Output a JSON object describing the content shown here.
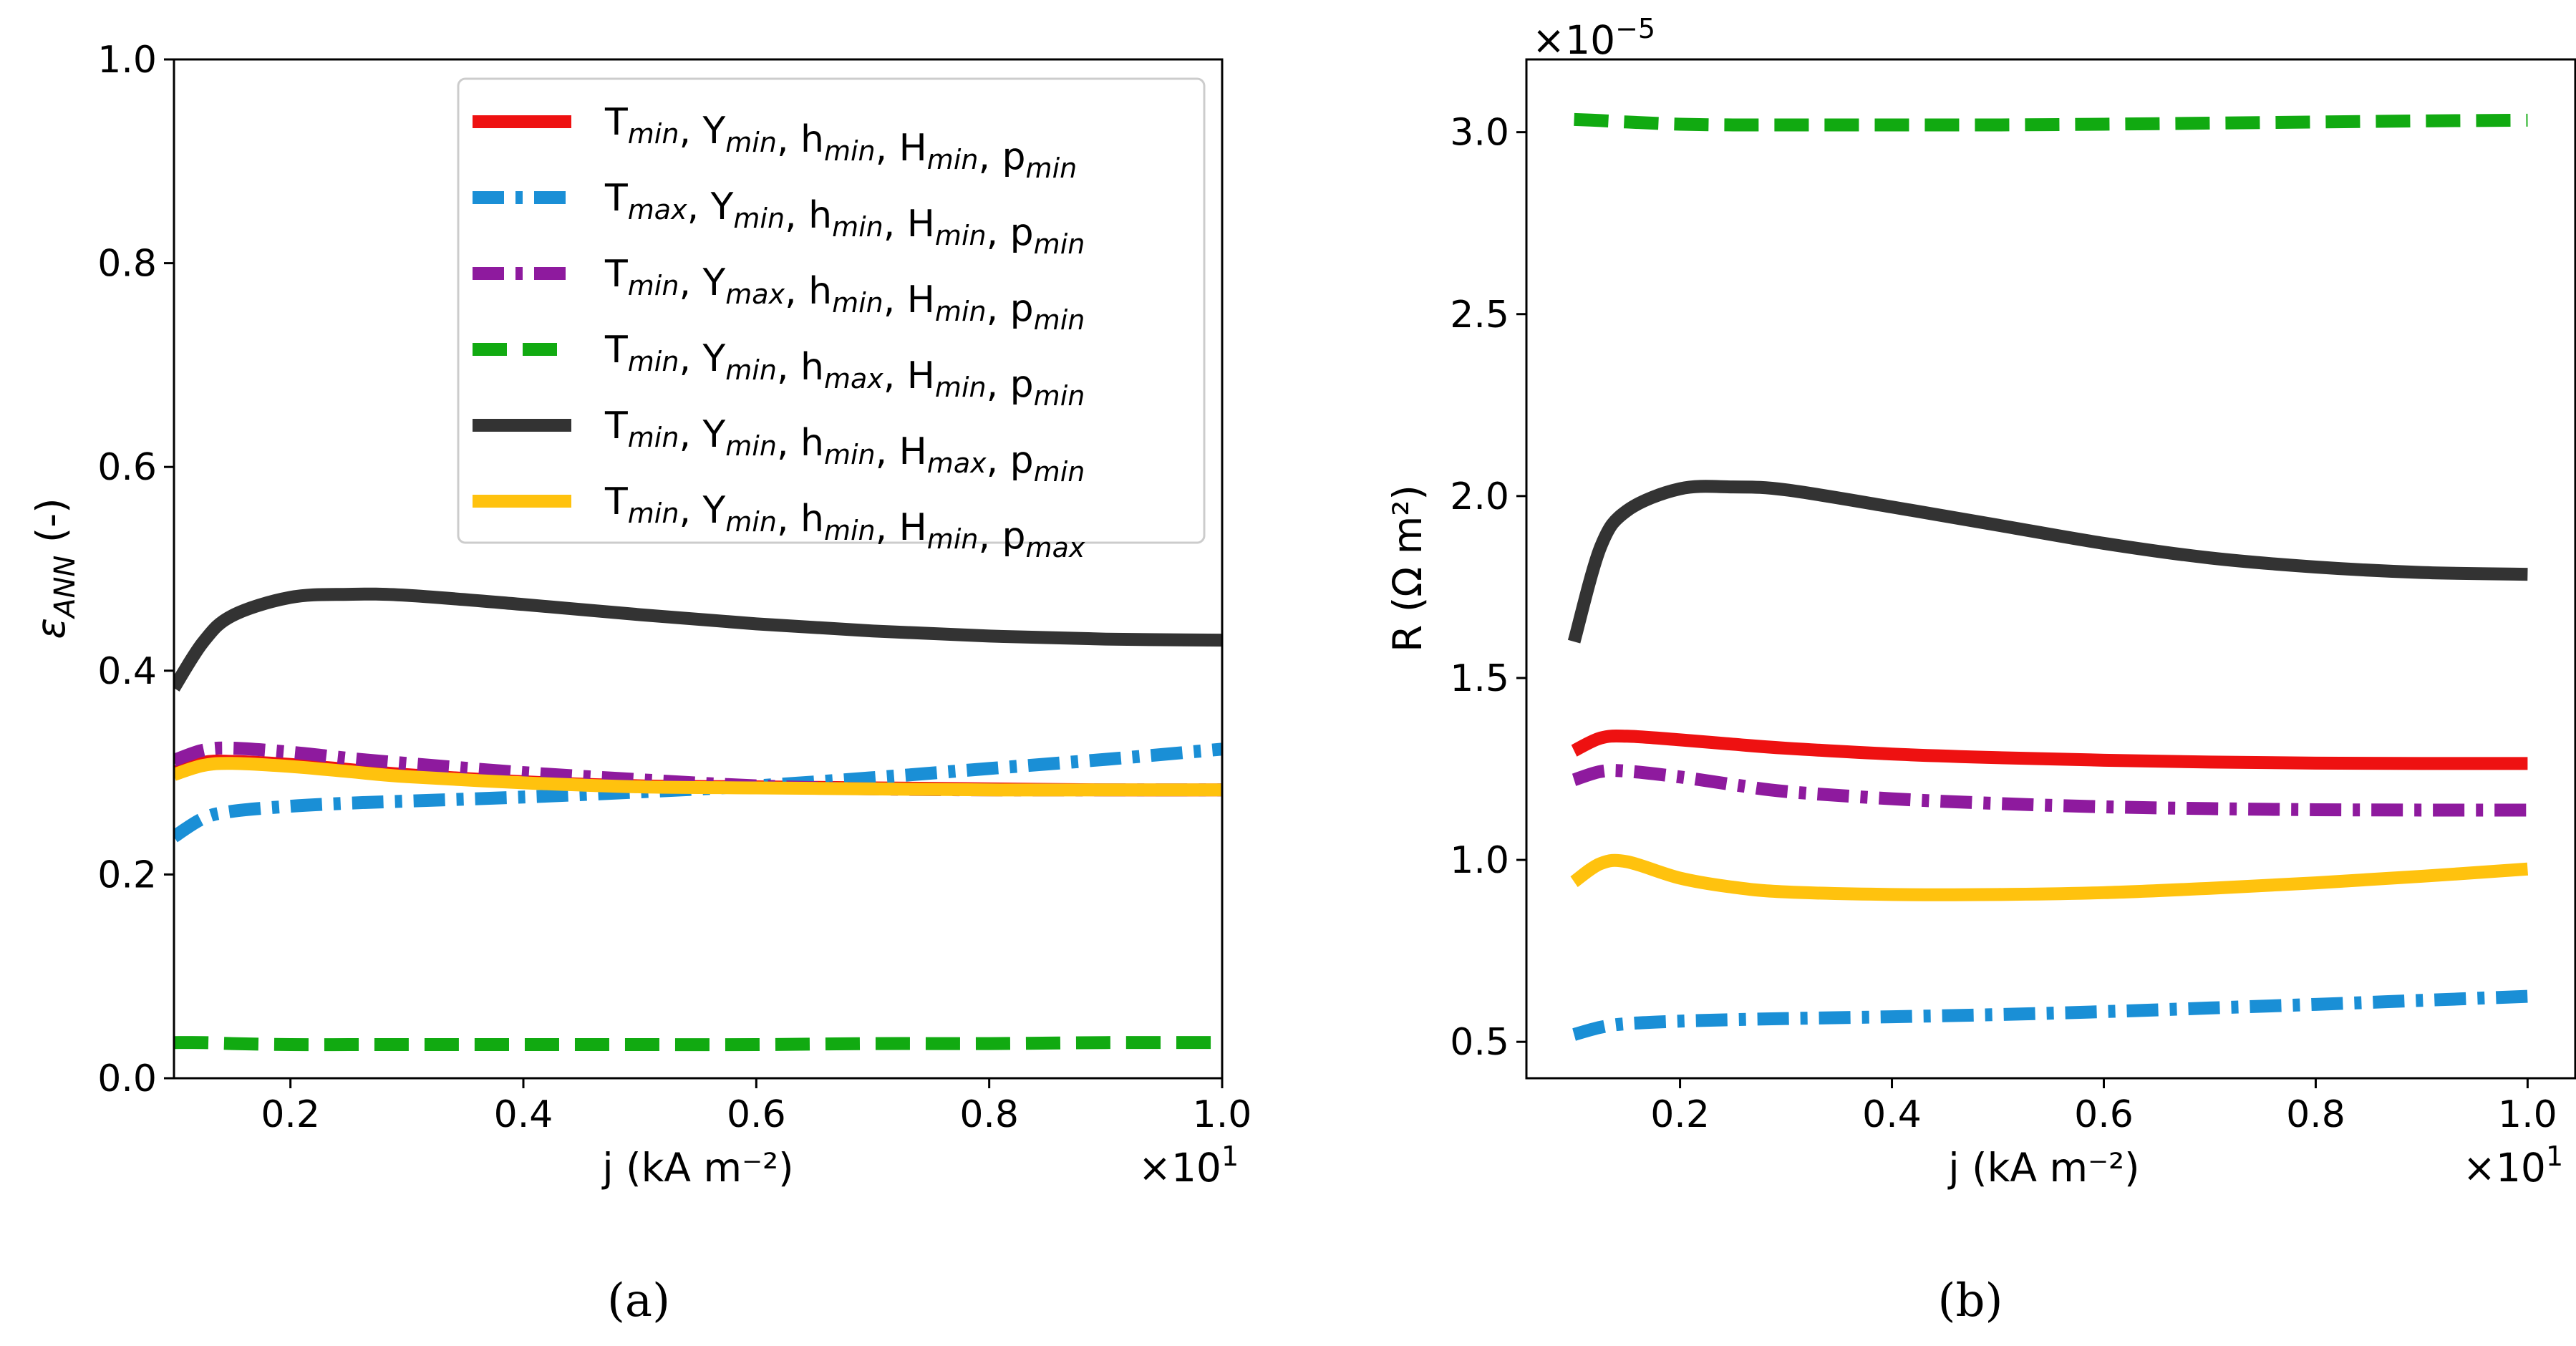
{
  "panel_labels": [
    "(a)",
    "(b)"
  ],
  "x_multiplier": "×10",
  "x_multiplier_exp": "1",
  "y_multiplier_b": "×10",
  "y_multiplier_b_exp": "−5",
  "legend": [
    {
      "color": "#ee1111",
      "dash": "solid",
      "parts": [
        [
          "T",
          "min"
        ],
        [
          "Y",
          "min"
        ],
        [
          "h",
          "min"
        ],
        [
          "H",
          "min"
        ],
        [
          "p",
          "min"
        ]
      ]
    },
    {
      "color": "#1a8fd6",
      "dash": "dashdot",
      "parts": [
        [
          "T",
          "max"
        ],
        [
          "Y",
          "min"
        ],
        [
          "h",
          "min"
        ],
        [
          "H",
          "min"
        ],
        [
          "p",
          "min"
        ]
      ]
    },
    {
      "color": "#8e1a9e",
      "dash": "dashdot",
      "parts": [
        [
          "T",
          "min"
        ],
        [
          "Y",
          "max"
        ],
        [
          "h",
          "min"
        ],
        [
          "H",
          "min"
        ],
        [
          "p",
          "min"
        ]
      ]
    },
    {
      "color": "#11aa11",
      "dash": "dashed",
      "parts": [
        [
          "T",
          "min"
        ],
        [
          "Y",
          "min"
        ],
        [
          "h",
          "max"
        ],
        [
          "H",
          "min"
        ],
        [
          "p",
          "min"
        ]
      ]
    },
    {
      "color": "#333333",
      "dash": "solid",
      "parts": [
        [
          "T",
          "min"
        ],
        [
          "Y",
          "min"
        ],
        [
          "h",
          "min"
        ],
        [
          "H",
          "max"
        ],
        [
          "p",
          "min"
        ]
      ]
    },
    {
      "color": "#ffc20e",
      "dash": "solid",
      "parts": [
        [
          "T",
          "min"
        ],
        [
          "Y",
          "min"
        ],
        [
          "h",
          "min"
        ],
        [
          "H",
          "min"
        ],
        [
          "p",
          "max"
        ]
      ]
    }
  ],
  "chart_data": [
    {
      "panel": "(a)",
      "type": "line",
      "xlabel": "j (kA m⁻²)",
      "ylabel": "ε",
      "ylabel_sub": "ANN",
      "ylabel_suffix": " (-)",
      "xlim": [
        0.1,
        1.0
      ],
      "ylim": [
        0.0,
        1.0
      ],
      "xticks": [
        0.2,
        0.4,
        0.6,
        0.8,
        1.0
      ],
      "xtick_labels": [
        "0.2",
        "0.4",
        "0.6",
        "0.8",
        "1.0"
      ],
      "yticks": [
        0.0,
        0.2,
        0.4,
        0.6,
        0.8,
        1.0
      ],
      "ytick_labels": [
        "0.0",
        "0.2",
        "0.4",
        "0.6",
        "0.8",
        "1.0"
      ],
      "legend_position": "top-right",
      "x": [
        0.1,
        0.125,
        0.15,
        0.2,
        0.25,
        0.3,
        0.4,
        0.5,
        0.6,
        0.7,
        0.8,
        0.9,
        1.0
      ],
      "series": [
        {
          "color": "#ee1111",
          "dash": "solid",
          "values": [
            0.3,
            0.31,
            0.311,
            0.308,
            0.303,
            0.298,
            0.291,
            0.287,
            0.286,
            0.285,
            0.284,
            0.283,
            0.283
          ]
        },
        {
          "color": "#1a8fd6",
          "dash": "dashdot",
          "values": [
            0.237,
            0.255,
            0.262,
            0.267,
            0.27,
            0.272,
            0.276,
            0.281,
            0.287,
            0.295,
            0.304,
            0.313,
            0.323
          ]
        },
        {
          "color": "#8e1a9e",
          "dash": "dashdot",
          "values": [
            0.312,
            0.322,
            0.324,
            0.32,
            0.314,
            0.309,
            0.3,
            0.293,
            0.287,
            0.284,
            0.283,
            0.283,
            0.283
          ]
        },
        {
          "color": "#11aa11",
          "dash": "dashed",
          "values": [
            0.035,
            0.035,
            0.034,
            0.033,
            0.033,
            0.033,
            0.033,
            0.033,
            0.033,
            0.034,
            0.034,
            0.035,
            0.035
          ]
        },
        {
          "color": "#333333",
          "dash": "solid",
          "values": [
            0.383,
            0.428,
            0.454,
            0.472,
            0.475,
            0.474,
            0.465,
            0.455,
            0.446,
            0.439,
            0.434,
            0.431,
            0.43
          ]
        },
        {
          "color": "#ffc20e",
          "dash": "solid",
          "values": [
            0.298,
            0.307,
            0.309,
            0.306,
            0.301,
            0.296,
            0.29,
            0.286,
            0.285,
            0.284,
            0.283,
            0.283,
            0.283
          ]
        }
      ]
    },
    {
      "panel": "(b)",
      "type": "line",
      "xlabel": "j (kA m⁻²)",
      "ylabel": "R (Ω m²)",
      "xlim": [
        0.055,
        1.045
      ],
      "ylim": [
        0.4,
        3.2
      ],
      "xticks": [
        0.2,
        0.4,
        0.6,
        0.8,
        1.0
      ],
      "xtick_labels": [
        "0.2",
        "0.4",
        "0.6",
        "0.8",
        "1.0"
      ],
      "yticks": [
        0.5,
        1.0,
        1.5,
        2.0,
        2.5,
        3.0
      ],
      "ytick_labels": [
        "0.5",
        "1.0",
        "1.5",
        "2.0",
        "2.5",
        "3.0"
      ],
      "x": [
        0.1,
        0.125,
        0.15,
        0.2,
        0.25,
        0.3,
        0.4,
        0.5,
        0.6,
        0.7,
        0.8,
        0.9,
        1.0
      ],
      "series": [
        {
          "color": "#ee1111",
          "dash": "solid",
          "values": [
            1.3,
            1.335,
            1.34,
            1.33,
            1.318,
            1.307,
            1.291,
            1.281,
            1.274,
            1.269,
            1.266,
            1.265,
            1.265
          ]
        },
        {
          "color": "#1a8fd6",
          "dash": "dashdot",
          "values": [
            0.52,
            0.54,
            0.55,
            0.557,
            0.561,
            0.564,
            0.569,
            0.575,
            0.583,
            0.593,
            0.603,
            0.614,
            0.625
          ]
        },
        {
          "color": "#8e1a9e",
          "dash": "dashdot",
          "values": [
            1.22,
            1.243,
            1.244,
            1.228,
            1.207,
            1.188,
            1.168,
            1.155,
            1.146,
            1.141,
            1.138,
            1.137,
            1.137
          ]
        },
        {
          "color": "#11aa11",
          "dash": "dashed",
          "values": [
            3.035,
            3.032,
            3.028,
            3.022,
            3.02,
            3.02,
            3.02,
            3.02,
            3.022,
            3.025,
            3.028,
            3.031,
            3.033
          ]
        },
        {
          "color": "#333333",
          "dash": "solid",
          "values": [
            1.6,
            1.86,
            1.96,
            2.02,
            2.025,
            2.017,
            1.97,
            1.92,
            1.87,
            1.83,
            1.805,
            1.79,
            1.785
          ]
        },
        {
          "color": "#ffc20e",
          "dash": "solid",
          "values": [
            0.94,
            0.99,
            0.995,
            0.95,
            0.925,
            0.912,
            0.905,
            0.905,
            0.91,
            0.922,
            0.937,
            0.955,
            0.975
          ]
        }
      ]
    }
  ]
}
